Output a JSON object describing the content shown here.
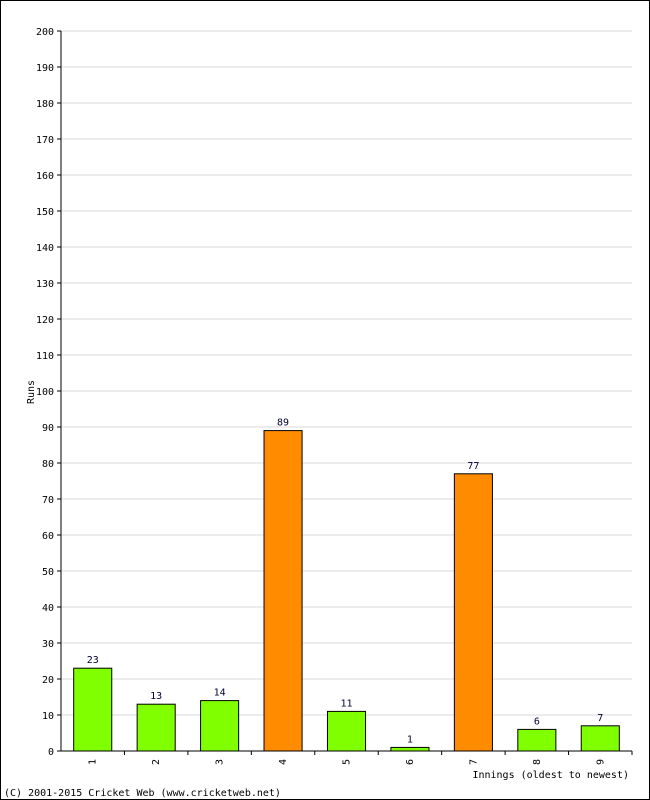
{
  "chart_data": {
    "type": "bar",
    "categories": [
      "1",
      "2",
      "3",
      "4",
      "5",
      "6",
      "7",
      "8",
      "9"
    ],
    "values": [
      23,
      13,
      14,
      89,
      11,
      1,
      77,
      6,
      7
    ],
    "bar_colors": [
      "#80ff00",
      "#80ff00",
      "#80ff00",
      "#ff8c00",
      "#80ff00",
      "#80ff00",
      "#ff8c00",
      "#80ff00",
      "#80ff00"
    ],
    "ylabel": "Runs",
    "xlabel": "Innings (oldest to newest)",
    "ylim": [
      0,
      200
    ],
    "ytick_step": 10,
    "grid": true,
    "grid_color": "#d9d9d9"
  },
  "footer": {
    "copyright": "(C) 2001-2015 Cricket Web (www.cricketweb.net)"
  }
}
